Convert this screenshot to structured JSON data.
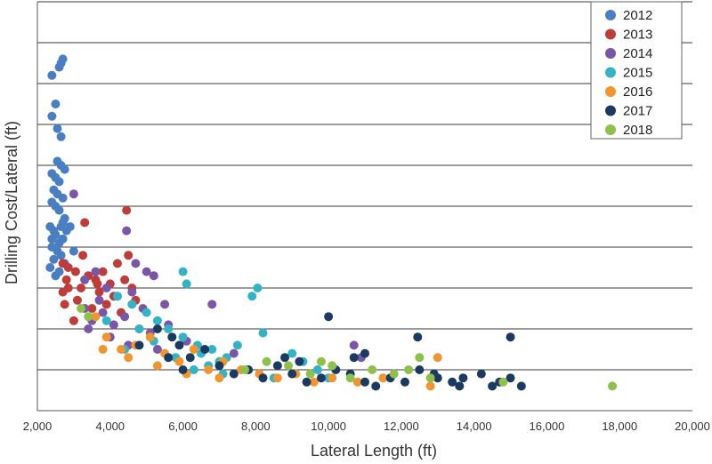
{
  "chart_data": {
    "type": "scatter",
    "title": "",
    "xlabel": "Lateral Length (ft)",
    "ylabel": "Drilling Cost/Lateral (ft)",
    "xlim": [
      2000,
      20000
    ],
    "ylim": [
      0,
      10
    ],
    "x_ticks": [
      "2,000",
      "4,000",
      "6,000",
      "8,000",
      "10,000",
      "12,000",
      "14,000",
      "16,000",
      "18,000",
      "20,000"
    ],
    "x_tick_values": [
      2000,
      4000,
      6000,
      8000,
      10000,
      12000,
      14000,
      16000,
      18000,
      20000
    ],
    "y_tick_labels_visible": false,
    "grid": "horizontal",
    "legend_position": "top-right",
    "series": [
      {
        "name": "2012",
        "color": "#4A7EC2",
        "points": [
          [
            2700,
            8.6
          ],
          [
            2650,
            8.5
          ],
          [
            2600,
            8.4
          ],
          [
            2400,
            8.2
          ],
          [
            2500,
            7.5
          ],
          [
            2400,
            7.2
          ],
          [
            2550,
            6.9
          ],
          [
            2650,
            6.7
          ],
          [
            2550,
            6.1
          ],
          [
            2650,
            6.0
          ],
          [
            2750,
            5.9
          ],
          [
            2400,
            5.8
          ],
          [
            2500,
            5.7
          ],
          [
            2600,
            5.6
          ],
          [
            2450,
            5.4
          ],
          [
            2550,
            5.3
          ],
          [
            2700,
            5.2
          ],
          [
            2400,
            5.1
          ],
          [
            2500,
            5.0
          ],
          [
            2600,
            4.9
          ],
          [
            2750,
            4.7
          ],
          [
            2350,
            4.5
          ],
          [
            2450,
            4.4
          ],
          [
            2650,
            4.5
          ],
          [
            2500,
            4.3
          ],
          [
            2700,
            4.2
          ],
          [
            2800,
            4.4
          ],
          [
            2400,
            4.0
          ],
          [
            2550,
            3.9
          ],
          [
            2650,
            3.8
          ],
          [
            2450,
            3.7
          ],
          [
            2750,
            3.6
          ],
          [
            2350,
            3.5
          ],
          [
            2600,
            3.4
          ],
          [
            2500,
            3.3
          ],
          [
            2900,
            4.5
          ],
          [
            3000,
            3.9
          ],
          [
            2400,
            4.2
          ],
          [
            2700,
            4.6
          ],
          [
            2600,
            4.1
          ]
        ]
      },
      {
        "name": "2013",
        "color": "#BE3C3A",
        "points": [
          [
            3300,
            4.6
          ],
          [
            4450,
            4.9
          ],
          [
            4500,
            3.8
          ],
          [
            2700,
            3.6
          ],
          [
            2850,
            3.5
          ],
          [
            3050,
            3.4
          ],
          [
            3250,
            3.8
          ],
          [
            3400,
            3.3
          ],
          [
            3600,
            3.2
          ],
          [
            3800,
            3.4
          ],
          [
            4000,
            3.1
          ],
          [
            4200,
            3.6
          ],
          [
            4400,
            3.2
          ],
          [
            3200,
            3.0
          ],
          [
            3700,
            2.9
          ],
          [
            4100,
            2.8
          ],
          [
            4600,
            3.0
          ],
          [
            2800,
            3.2
          ],
          [
            2700,
            2.9
          ],
          [
            3100,
            2.7
          ],
          [
            3500,
            2.5
          ],
          [
            3900,
            2.6
          ],
          [
            4300,
            2.4
          ],
          [
            3000,
            2.2
          ],
          [
            2850,
            3.0
          ],
          [
            3650,
            3.1
          ],
          [
            4700,
            2.7
          ],
          [
            2750,
            2.6
          ]
        ]
      },
      {
        "name": "2014",
        "color": "#7A57A6",
        "points": [
          [
            3000,
            5.3
          ],
          [
            4450,
            4.4
          ],
          [
            4700,
            3.6
          ],
          [
            3300,
            3.2
          ],
          [
            3600,
            3.4
          ],
          [
            3900,
            3.0
          ],
          [
            4200,
            2.8
          ],
          [
            4600,
            2.9
          ],
          [
            5000,
            3.4
          ],
          [
            5200,
            3.3
          ],
          [
            5500,
            2.6
          ],
          [
            3500,
            2.2
          ],
          [
            3800,
            2.4
          ],
          [
            4100,
            2.1
          ],
          [
            4400,
            2.3
          ],
          [
            4800,
            2.0
          ],
          [
            5100,
            1.9
          ],
          [
            3300,
            2.5
          ],
          [
            3700,
            2.7
          ],
          [
            6800,
            2.6
          ],
          [
            10700,
            1.6
          ],
          [
            10900,
            1.3
          ],
          [
            6100,
            1.7
          ],
          [
            4900,
            2.5
          ],
          [
            5600,
            2.1
          ],
          [
            4000,
            1.8
          ],
          [
            3400,
            2.0
          ],
          [
            4500,
            1.6
          ],
          [
            5300,
            1.5
          ],
          [
            7400,
            1.4
          ]
        ]
      },
      {
        "name": "2015",
        "color": "#33B3C6",
        "points": [
          [
            6000,
            3.4
          ],
          [
            8050,
            3.0
          ],
          [
            7900,
            2.8
          ],
          [
            6100,
            3.1
          ],
          [
            4200,
            2.8
          ],
          [
            4600,
            2.6
          ],
          [
            5000,
            2.4
          ],
          [
            5300,
            2.2
          ],
          [
            5600,
            2.0
          ],
          [
            6000,
            1.8
          ],
          [
            6400,
            1.6
          ],
          [
            6800,
            1.5
          ],
          [
            7200,
            1.3
          ],
          [
            7500,
            1.6
          ],
          [
            8200,
            1.9
          ],
          [
            7000,
            1.2
          ],
          [
            5800,
            1.3
          ],
          [
            6300,
            1.0
          ],
          [
            6700,
            1.1
          ],
          [
            7100,
            0.9
          ],
          [
            8500,
            0.8
          ],
          [
            9000,
            1.4
          ],
          [
            9300,
            1.2
          ],
          [
            9700,
            1.0
          ],
          [
            10000,
            0.8
          ],
          [
            4800,
            2.0
          ],
          [
            5200,
            1.7
          ],
          [
            4400,
            1.5
          ],
          [
            3900,
            2.2
          ],
          [
            6500,
            1.4
          ]
        ]
      },
      {
        "name": "2016",
        "color": "#F2952F",
        "points": [
          [
            13000,
            1.3
          ],
          [
            3600,
            2.3
          ],
          [
            3900,
            1.8
          ],
          [
            4300,
            1.5
          ],
          [
            4700,
            1.6
          ],
          [
            5100,
            1.8
          ],
          [
            5500,
            1.4
          ],
          [
            5900,
            1.2
          ],
          [
            6300,
            1.5
          ],
          [
            6700,
            1.0
          ],
          [
            7100,
            1.2
          ],
          [
            7600,
            1.0
          ],
          [
            8100,
            0.9
          ],
          [
            8600,
            0.8
          ],
          [
            9100,
            0.9
          ],
          [
            9600,
            0.7
          ],
          [
            10100,
            0.8
          ],
          [
            10800,
            0.7
          ],
          [
            11500,
            0.8
          ],
          [
            12800,
            0.6
          ],
          [
            3800,
            1.5
          ],
          [
            4500,
            1.3
          ],
          [
            5300,
            1.1
          ],
          [
            6100,
            0.9
          ],
          [
            7000,
            0.8
          ]
        ]
      },
      {
        "name": "2017",
        "color": "#1A3A62",
        "points": [
          [
            10000,
            2.3
          ],
          [
            12450,
            1.8
          ],
          [
            15000,
            1.8
          ],
          [
            11000,
            1.4
          ],
          [
            10700,
            1.3
          ],
          [
            5300,
            2.0
          ],
          [
            5700,
            1.8
          ],
          [
            5900,
            1.6
          ],
          [
            6200,
            1.3
          ],
          [
            6600,
            1.5
          ],
          [
            7000,
            1.1
          ],
          [
            7400,
            0.9
          ],
          [
            7800,
            1.0
          ],
          [
            8200,
            0.8
          ],
          [
            8600,
            1.1
          ],
          [
            9000,
            0.9
          ],
          [
            9400,
            0.7
          ],
          [
            9800,
            0.8
          ],
          [
            10200,
            1.0
          ],
          [
            10600,
            0.9
          ],
          [
            11000,
            0.7
          ],
          [
            11300,
            0.6
          ],
          [
            11700,
            0.8
          ],
          [
            12100,
            0.7
          ],
          [
            12500,
            1.0
          ],
          [
            13000,
            0.8
          ],
          [
            13400,
            0.7
          ],
          [
            13700,
            0.8
          ],
          [
            14200,
            0.9
          ],
          [
            14700,
            0.7
          ],
          [
            15000,
            0.8
          ],
          [
            15300,
            0.6
          ],
          [
            14500,
            0.6
          ],
          [
            13600,
            0.6
          ],
          [
            12900,
            0.9
          ],
          [
            6000,
            1.0
          ],
          [
            5600,
            1.3
          ],
          [
            4800,
            1.6
          ],
          [
            9200,
            1.2
          ],
          [
            8800,
            1.3
          ]
        ]
      },
      {
        "name": "2018",
        "color": "#8EC04C",
        "points": [
          [
            17800,
            0.6
          ],
          [
            12500,
            1.3
          ],
          [
            3200,
            2.5
          ],
          [
            3400,
            2.3
          ],
          [
            7700,
            1.0
          ],
          [
            8300,
            1.2
          ],
          [
            8900,
            1.1
          ],
          [
            9500,
            0.9
          ],
          [
            10100,
            1.1
          ],
          [
            10600,
            0.8
          ],
          [
            11200,
            1.0
          ],
          [
            11800,
            0.9
          ],
          [
            12200,
            1.0
          ],
          [
            12800,
            0.8
          ],
          [
            14800,
            0.7
          ],
          [
            9800,
            1.2
          ]
        ]
      }
    ]
  }
}
